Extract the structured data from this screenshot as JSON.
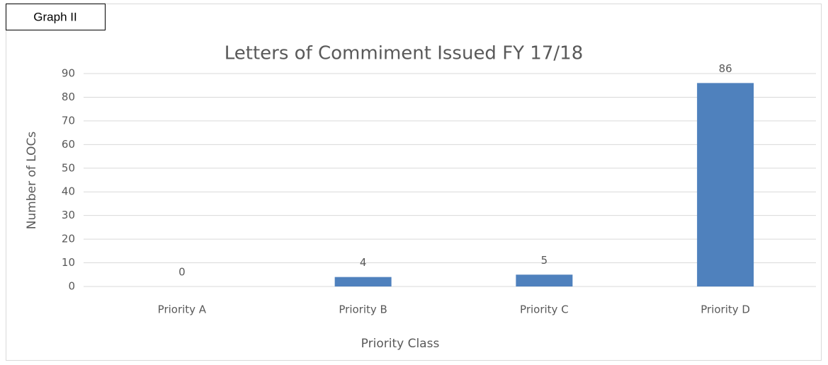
{
  "chart_data": {
    "type": "bar",
    "annotation": "Graph II",
    "title": "Letters of Commiment Issued FY 17/18",
    "x_label": "Priority Class",
    "y_label": "Number of LOCs",
    "categories": [
      "Priority A",
      "Priority B",
      "Priority C",
      "Priority D"
    ],
    "values": [
      0,
      4,
      5,
      86
    ],
    "color": "#4f81bd",
    "ylim": [
      0,
      90
    ],
    "yticks": [
      0,
      10,
      20,
      30,
      40,
      50,
      60,
      70,
      80,
      90
    ],
    "grid": true
  }
}
